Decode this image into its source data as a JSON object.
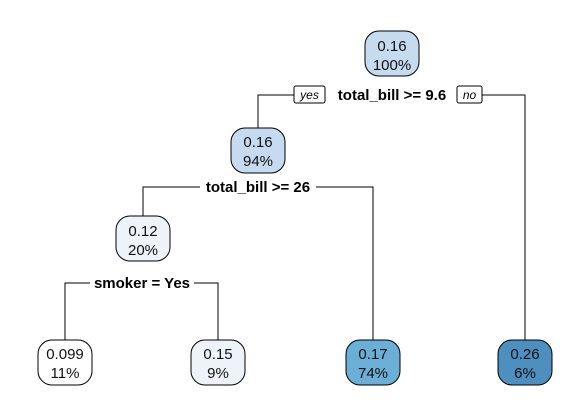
{
  "tree": {
    "colors": {
      "lightest": "#FFFFFF",
      "very_light": "#EEF3FA",
      "light": "#C6DBEF",
      "medium": "#6BAED6",
      "dark": "#4F8FC0"
    },
    "nodes": [
      {
        "id": "root",
        "value": "0.16",
        "percent": "100%",
        "fill": "light"
      },
      {
        "id": "n-left",
        "value": "0.16",
        "percent": "94%",
        "fill": "light"
      },
      {
        "id": "n-left-left",
        "value": "0.12",
        "percent": "20%",
        "fill": "very_light"
      },
      {
        "id": "leaf-1",
        "value": "0.099",
        "percent": "11%",
        "fill": "lightest"
      },
      {
        "id": "leaf-2",
        "value": "0.15",
        "percent": "9%",
        "fill": "very_light"
      },
      {
        "id": "leaf-3",
        "value": "0.17",
        "percent": "74%",
        "fill": "medium"
      },
      {
        "id": "leaf-4",
        "value": "0.26",
        "percent": "6%",
        "fill": "dark"
      }
    ],
    "splits": [
      {
        "id": "split-root",
        "label": "total_bill >= 9.6"
      },
      {
        "id": "split-left",
        "label": "total_bill >= 26"
      },
      {
        "id": "split-left-left",
        "label": "smoker = Yes"
      }
    ],
    "branch_tags": {
      "yes": "yes",
      "no": "no"
    }
  }
}
